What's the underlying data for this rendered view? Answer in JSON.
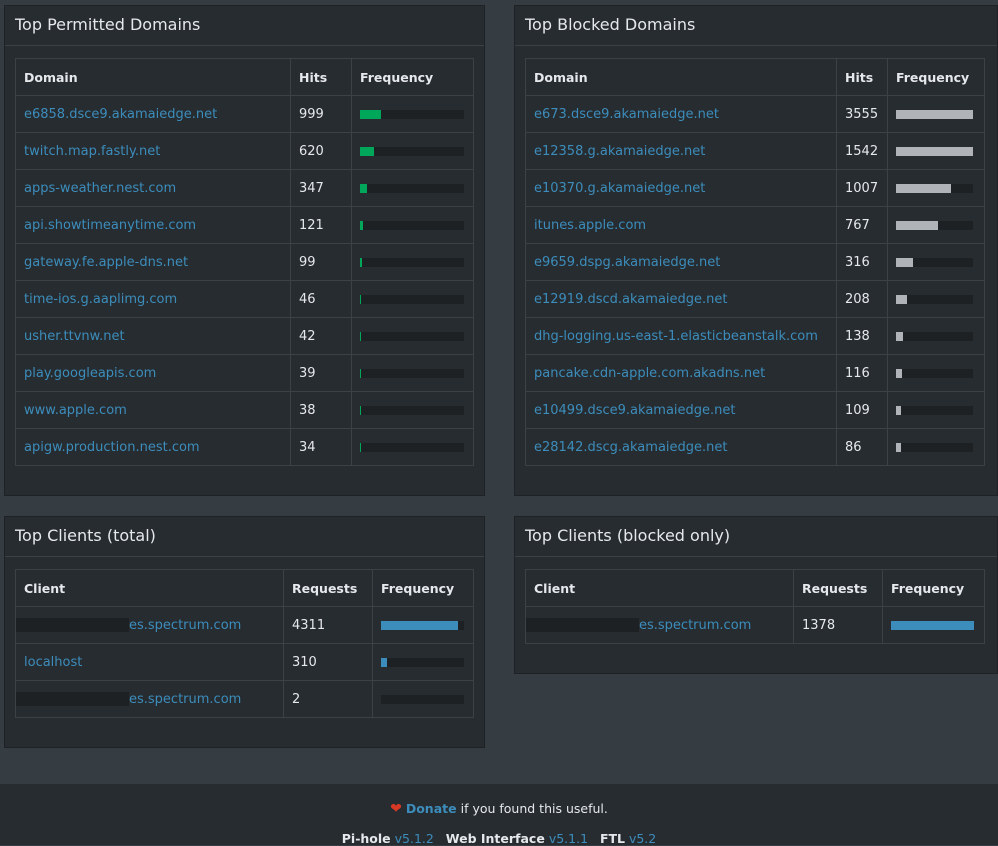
{
  "permitted": {
    "title": "Top Permitted Domains",
    "columns": [
      "Domain",
      "Hits",
      "Frequency"
    ],
    "rows": [
      {
        "domain": "e6858.dsce9.akamaiedge.net",
        "hits": "999",
        "freq": 0.2
      },
      {
        "domain": "twitch.map.fastly.net",
        "hits": "620",
        "freq": 0.13
      },
      {
        "domain": "apps-weather.nest.com",
        "hits": "347",
        "freq": 0.07
      },
      {
        "domain": "api.showtimeanytime.com",
        "hits": "121",
        "freq": 0.025
      },
      {
        "domain": "gateway.fe.apple-dns.net",
        "hits": "99",
        "freq": 0.02
      },
      {
        "domain": "time-ios.g.aaplimg.com",
        "hits": "46",
        "freq": 0.01
      },
      {
        "domain": "usher.ttvnw.net",
        "hits": "42",
        "freq": 0.009
      },
      {
        "domain": "play.googleapis.com",
        "hits": "39",
        "freq": 0.008
      },
      {
        "domain": "www.apple.com",
        "hits": "38",
        "freq": 0.008
      },
      {
        "domain": "apigw.production.nest.com",
        "hits": "34",
        "freq": 0.007
      }
    ]
  },
  "blocked": {
    "title": "Top Blocked Domains",
    "columns": [
      "Domain",
      "Hits",
      "Frequency"
    ],
    "rows": [
      {
        "domain": "e673.dsce9.akamaiedge.net",
        "hits": "3555",
        "freq": 1.0
      },
      {
        "domain": "e12358.g.akamaiedge.net",
        "hits": "1542",
        "freq": 1.0
      },
      {
        "domain": "e10370.g.akamaiedge.net",
        "hits": "1007",
        "freq": 0.72
      },
      {
        "domain": "itunes.apple.com",
        "hits": "767",
        "freq": 0.55
      },
      {
        "domain": "e9659.dspg.akamaiedge.net",
        "hits": "316",
        "freq": 0.22
      },
      {
        "domain": "e12919.dscd.akamaiedge.net",
        "hits": "208",
        "freq": 0.14
      },
      {
        "domain": "dhg-logging.us-east-1.elasticbeanstalk.com",
        "hits": "138",
        "freq": 0.09
      },
      {
        "domain": "pancake.cdn-apple.com.akadns.net",
        "hits": "116",
        "freq": 0.08
      },
      {
        "domain": "e10499.dsce9.akamaiedge.net",
        "hits": "109",
        "freq": 0.07
      },
      {
        "domain": "e28142.dscg.akamaiedge.net",
        "hits": "86",
        "freq": 0.06
      }
    ]
  },
  "clients_total": {
    "title": "Top Clients (total)",
    "columns": [
      "Client",
      "Requests",
      "Frequency"
    ],
    "rows": [
      {
        "client": "es.spectrum.com",
        "redacted": true,
        "requests": "4311",
        "freq": 0.93
      },
      {
        "client": "localhost",
        "redacted": false,
        "requests": "310",
        "freq": 0.07
      },
      {
        "client": "es.spectrum.com",
        "redacted": true,
        "requests": "2",
        "freq": 0.0
      }
    ]
  },
  "clients_blocked": {
    "title": "Top Clients (blocked only)",
    "columns": [
      "Client",
      "Requests",
      "Frequency"
    ],
    "rows": [
      {
        "client": "es.spectrum.com",
        "redacted": true,
        "requests": "1378",
        "freq": 1.0
      }
    ]
  },
  "footer": {
    "donate_link": "Donate",
    "donate_text": "if you found this useful.",
    "pihole_label": "Pi-hole",
    "pihole_version": "v5.1.2",
    "web_label": "Web Interface",
    "web_version": "v5.1.1",
    "ftl_label": "FTL",
    "ftl_version": "v5.2"
  },
  "colors": {
    "permitted_bar": "#00a65a",
    "blocked_bar": "#b0b4b8",
    "client_bar": "#3c8dbc",
    "link": "#3c8dbc"
  }
}
